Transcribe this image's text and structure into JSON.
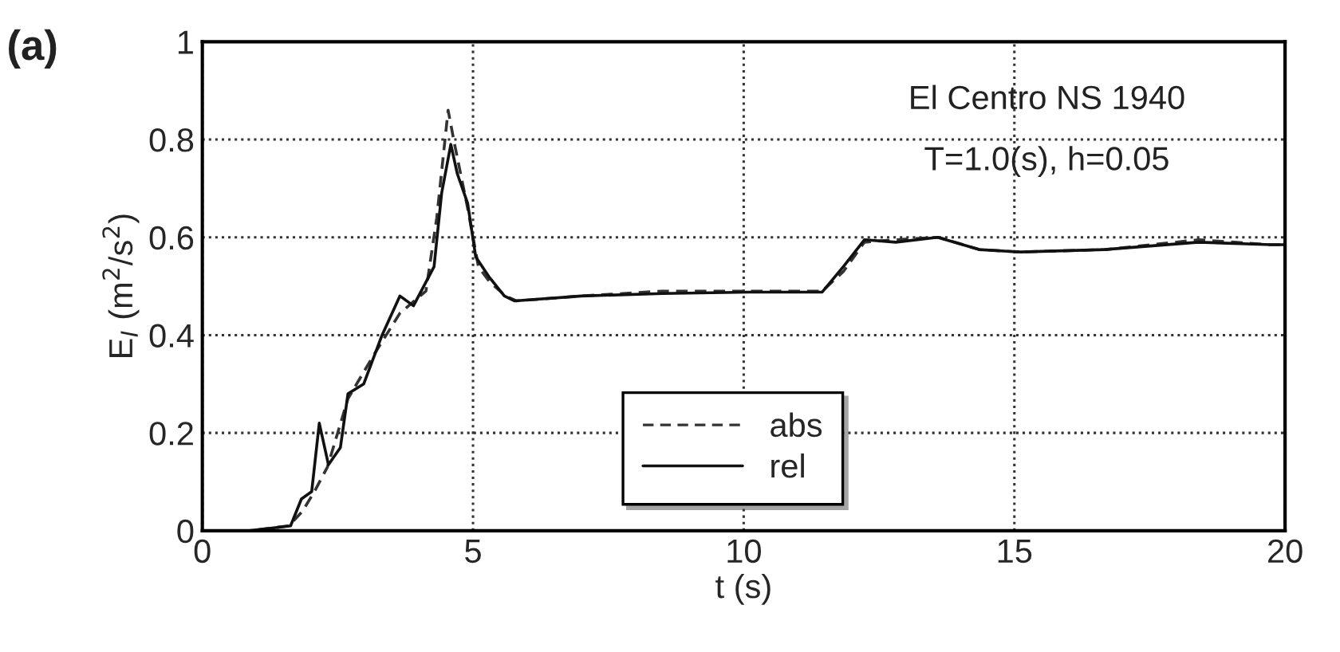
{
  "chart_data": {
    "type": "line",
    "xlabel": "t (s)",
    "ylabel": "E$_{I}$ (m$^{2}$/s$^{2}$)",
    "xlim": [
      0,
      20
    ],
    "xticks": [
      0,
      5,
      10,
      15,
      20
    ],
    "ylim": [
      0,
      1
    ],
    "yticks": [
      0,
      0.2,
      0.4,
      0.6,
      0.8,
      1
    ],
    "grid": true,
    "legend": "bottom",
    "marker": "none",
    "annotations": [
      "(a)",
      "El Centro NS 1940",
      "T=1.0(s), h=0.05"
    ],
    "series": [
      {
        "name": "abs",
        "color": "#333333",
        "line_style": "dashed",
        "x": [
          0,
          0.9,
          1.6,
          1.85,
          2.07,
          2.31,
          2.69,
          3.17,
          3.65,
          4.13,
          4.33,
          4.54,
          4.66,
          4.9,
          5.1,
          5.3,
          5.6,
          5.8,
          7,
          8.5,
          10.1,
          11.45,
          11.84,
          12.23,
          12.8,
          13.6,
          14.35,
          15.1,
          16.7,
          18.4,
          19.7,
          20
        ],
        "values": [
          0,
          0,
          0.01,
          0.04,
          0.08,
          0.13,
          0.27,
          0.36,
          0.445,
          0.49,
          0.64,
          0.86,
          0.79,
          0.66,
          0.54,
          0.51,
          0.48,
          0.47,
          0.48,
          0.49,
          0.49,
          0.49,
          0.53,
          0.59,
          0.595,
          0.6,
          0.575,
          0.57,
          0.575,
          0.595,
          0.585,
          0.585
        ]
      },
      {
        "name": "rel",
        "color": "#111111",
        "line_style": "solid",
        "x": [
          0,
          0.87,
          1.63,
          1.83,
          2.02,
          2.16,
          2.33,
          2.55,
          2.69,
          2.98,
          3.32,
          3.65,
          3.9,
          4.09,
          4.28,
          4.42,
          4.59,
          4.71,
          4.9,
          5.05,
          5.29,
          5.58,
          5.77,
          7,
          8.5,
          10.1,
          11.45,
          11.84,
          12.23,
          12.81,
          13.58,
          14.35,
          15.12,
          16.66,
          18.4,
          19.74,
          20
        ],
        "values": [
          0,
          0,
          0.01,
          0.065,
          0.08,
          0.22,
          0.135,
          0.17,
          0.28,
          0.3,
          0.4,
          0.48,
          0.46,
          0.5,
          0.54,
          0.69,
          0.79,
          0.73,
          0.67,
          0.56,
          0.52,
          0.48,
          0.47,
          0.48,
          0.485,
          0.488,
          0.488,
          0.54,
          0.595,
          0.59,
          0.6,
          0.575,
          0.57,
          0.575,
          0.59,
          0.585,
          0.585
        ]
      }
    ]
  }
}
